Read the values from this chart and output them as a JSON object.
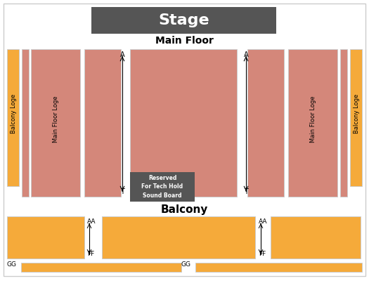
{
  "bg_color": "#ffffff",
  "border_color": "#cccccc",
  "stage_color": "#555555",
  "stage_text": "Stage",
  "stage_text_color": "#ffffff",
  "main_floor_color": "#d4877a",
  "balcony_color": "#f5aa3a",
  "reserved_box_color": "#555555",
  "reserved_text": "Reserved\nFor Tech Hold\nSound Board",
  "reserved_text_color": "#ffffff",
  "section_labels": {
    "main_floor": "Main Floor",
    "balcony": "Balcony",
    "left_main_floor_loge": "Main Floor Loge",
    "right_main_floor_loge": "Main Floor Loge",
    "left_balcony_loge": "Balcony Loge",
    "right_balcony_loge": "Balcony Loge"
  },
  "row_labels": {
    "left_A": "A",
    "right_A": "A",
    "left_T": "T",
    "right_T": "T",
    "left_AA": "AA",
    "right_AA": "AA",
    "left_FF": "FF",
    "right_FF": "FF",
    "left_GG_l": "GG",
    "right_GG_l": "GG"
  }
}
